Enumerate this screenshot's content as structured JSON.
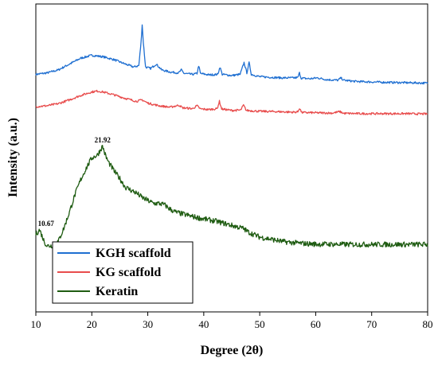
{
  "chart_data": {
    "type": "line",
    "xlabel": "Degree (2θ)",
    "ylabel": "Intensity (a.u.)",
    "xlim": [
      10,
      80
    ],
    "xticks": [
      10,
      20,
      30,
      40,
      50,
      60,
      70,
      80
    ],
    "y_ticks_labeled": false,
    "grid": false,
    "legend_position": "bottom-left",
    "series": [
      {
        "name": "KGH scaffold",
        "color": "#1f6fd1",
        "points": [
          [
            10,
            61
          ],
          [
            12,
            61.5
          ],
          [
            14,
            62.5
          ],
          [
            16,
            64.5
          ],
          [
            18,
            66.5
          ],
          [
            20,
            67.5
          ],
          [
            22,
            67
          ],
          [
            24,
            66
          ],
          [
            26,
            64.5
          ],
          [
            27.5,
            63.5
          ],
          [
            28.4,
            64
          ],
          [
            28.8,
            72
          ],
          [
            29.0,
            78
          ],
          [
            29.2,
            72
          ],
          [
            29.6,
            63.5
          ],
          [
            30.5,
            63
          ],
          [
            31.5,
            64.5
          ],
          [
            32.5,
            62.5
          ],
          [
            34,
            61.8
          ],
          [
            35.5,
            61.5
          ],
          [
            36,
            62.5
          ],
          [
            36.5,
            61.3
          ],
          [
            38,
            61
          ],
          [
            38.8,
            61.3
          ],
          [
            39.1,
            64
          ],
          [
            39.4,
            61.3
          ],
          [
            41,
            60.8
          ],
          [
            42.5,
            61
          ],
          [
            42.9,
            63.5
          ],
          [
            43.3,
            61
          ],
          [
            45,
            60.6
          ],
          [
            46.5,
            61
          ],
          [
            47.2,
            65
          ],
          [
            47.7,
            61.5
          ],
          [
            48.1,
            65
          ],
          [
            48.5,
            61
          ],
          [
            50,
            60.2
          ],
          [
            52,
            60
          ],
          [
            54,
            59.8
          ],
          [
            56,
            59.8
          ],
          [
            56.8,
            59.9
          ],
          [
            57.1,
            61.5
          ],
          [
            57.4,
            59.7
          ],
          [
            59,
            59.5
          ],
          [
            60.3,
            59.8
          ],
          [
            62,
            59.2
          ],
          [
            64,
            59
          ],
          [
            64.5,
            59.8
          ],
          [
            65,
            59
          ],
          [
            67,
            58.6
          ],
          [
            70,
            58.4
          ],
          [
            72,
            58.3
          ],
          [
            75,
            58.2
          ],
          [
            78,
            58.1
          ],
          [
            80,
            58
          ]
        ]
      },
      {
        "name": "KG scaffold",
        "color": "#e84c4c",
        "points": [
          [
            10,
            50
          ],
          [
            12,
            50.3
          ],
          [
            14,
            51
          ],
          [
            16,
            52.3
          ],
          [
            18,
            53.8
          ],
          [
            20,
            55
          ],
          [
            21,
            55.3
          ],
          [
            22,
            55
          ],
          [
            24,
            54
          ],
          [
            26,
            52.8
          ],
          [
            28,
            51.8
          ],
          [
            29,
            52.3
          ],
          [
            30,
            51.2
          ],
          [
            32,
            50.3
          ],
          [
            34,
            49.8
          ],
          [
            35.6,
            50.5
          ],
          [
            36.2,
            49.6
          ],
          [
            38,
            49.3
          ],
          [
            38.8,
            50.3
          ],
          [
            39.4,
            49.2
          ],
          [
            41,
            49
          ],
          [
            42.4,
            49.3
          ],
          [
            42.8,
            51.8
          ],
          [
            43.2,
            49.2
          ],
          [
            45,
            48.7
          ],
          [
            46.6,
            48.8
          ],
          [
            47.1,
            50.5
          ],
          [
            47.6,
            48.7
          ],
          [
            50,
            48.4
          ],
          [
            53,
            48.3
          ],
          [
            56,
            48.1
          ],
          [
            56.8,
            48.2
          ],
          [
            57.1,
            49.5
          ],
          [
            57.5,
            48
          ],
          [
            60,
            47.9
          ],
          [
            63,
            47.8
          ],
          [
            64.3,
            48.3
          ],
          [
            65,
            47.7
          ],
          [
            68,
            47.6
          ],
          [
            72,
            47.6
          ],
          [
            76,
            47.6
          ],
          [
            80,
            47.5
          ]
        ]
      },
      {
        "name": "Keratin",
        "color": "#1f5c12",
        "points": [
          [
            10,
            6.5
          ],
          [
            10.67,
            8
          ],
          [
            11.5,
            4
          ],
          [
            12,
            2.5
          ],
          [
            13,
            2.6
          ],
          [
            14,
            4
          ],
          [
            15,
            8.5
          ],
          [
            16,
            14
          ],
          [
            17,
            20
          ],
          [
            18,
            25
          ],
          [
            19,
            29
          ],
          [
            20,
            32.5
          ],
          [
            21,
            33.5
          ],
          [
            21.92,
            36.5
          ],
          [
            22.5,
            33
          ],
          [
            23,
            31
          ],
          [
            24,
            28
          ],
          [
            25,
            25.5
          ],
          [
            26,
            22.5
          ],
          [
            27,
            21.5
          ],
          [
            28,
            20.5
          ],
          [
            29,
            19
          ],
          [
            30,
            18
          ],
          [
            31,
            17
          ],
          [
            32,
            17
          ],
          [
            33,
            16.5
          ],
          [
            34,
            15
          ],
          [
            35,
            14
          ],
          [
            36,
            13.5
          ],
          [
            38,
            12.5
          ],
          [
            40,
            11.7
          ],
          [
            42,
            11
          ],
          [
            44,
            10
          ],
          [
            46,
            9
          ],
          [
            47,
            8.5
          ],
          [
            48,
            7.2
          ],
          [
            50,
            5.5
          ],
          [
            52,
            4.8
          ],
          [
            54,
            4
          ],
          [
            56,
            3.6
          ],
          [
            58,
            3.3
          ],
          [
            60,
            3.1
          ],
          [
            62,
            3.1
          ],
          [
            65,
            3
          ],
          [
            70,
            3
          ],
          [
            75,
            3
          ],
          [
            80,
            3
          ]
        ]
      }
    ],
    "annotations": [
      {
        "label": "21.92",
        "x": 21.92,
        "y": 36.5
      },
      {
        "label": "10.67",
        "x": 10.67,
        "y": 8
      }
    ]
  }
}
